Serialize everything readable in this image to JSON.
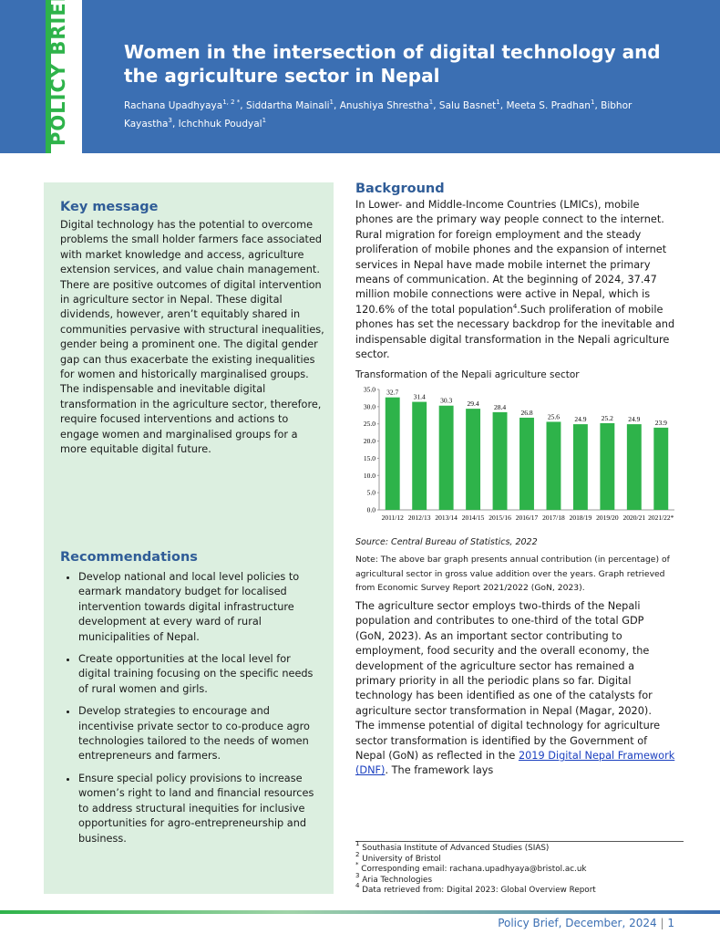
{
  "header": {
    "label": "POLICY BRIEF",
    "title": "Women in the intersection of digital technology and the agriculture sector in Nepal",
    "authors": [
      {
        "name": "Rachana Upadhyaya",
        "affil": "1, 2 *"
      },
      {
        "name": "Siddartha Mainali",
        "affil": "1"
      },
      {
        "name": "Anushiya Shrestha",
        "affil": "1"
      },
      {
        "name": "Salu Basnet",
        "affil": "1"
      },
      {
        "name": "Meeta S. Pradhan",
        "affil": "1"
      },
      {
        "name": "Bibhor Kayastha",
        "affil": "3"
      },
      {
        "name": "Ichchhuk Poudyal",
        "affil": "1"
      }
    ]
  },
  "key_message": {
    "heading": "Key message",
    "text": "Digital technology has the potential to overcome problems the small holder farmers face associated with market knowledge and access, agriculture extension services, and value chain management. There are positive outcomes of digital intervention in agriculture sector in Nepal. These digital dividends, however, aren’t equitably shared in communities pervasive with structural inequalities, gender being a prominent one. The digital gender gap can thus exacerbate the existing inequalities for women and historically marginalised groups. The indispensable and inevitable digital transformation in the agriculture sector, therefore, require focused interventions and actions to engage women and marginalised groups for a more equitable digital future."
  },
  "recommendations": {
    "heading": "Recommendations",
    "items": [
      "Develop national and local level policies to earmark mandatory budget for localised intervention towards digital infrastructure development at every ward of rural municipalities of Nepal.",
      "Create opportunities at the local level for digital training focusing on the specific needs of rural women and girls.",
      "Develop strategies to encourage and incentivise private sector to co-produce agro technologies tailored to the needs of women entrepreneurs and farmers.",
      "Ensure special policy provisions to increase women’s right to land and financial resources to address structural inequities for inclusive opportunities for agro-entrepreneurship and business."
    ]
  },
  "background": {
    "heading": "Background",
    "p1_before": "In Lower- and Middle-Income Countries (LMICs), mobile phones are the primary way people connect to the internet. Rural migration for foreign employment and the steady proliferation of mobile phones and the expansion of internet services in Nepal have made mobile internet the primary means of communication. At the beginning of 2024, 37.47 million mobile connections were active in Nepal, which is 120.6% of the total population",
    "p1_sup": "4",
    "p1_after": ".Such proliferation of mobile phones has set the necessary backdrop for the inevitable and indispensable digital transformation in the Nepali agriculture sector.",
    "source": "Source: Central Bureau of Statistics, 2022",
    "note": "Note: The above bar graph presents annual contribution (in percentage) of agricultural sector in gross value addition over the years. Graph retrieved from Economic Survey Report 2021/2022 (GoN, 2023).",
    "p2": "The agriculture sector employs two-thirds of the Nepali population and contributes to one-third of the total GDP (GoN, 2023). As an important sector contributing to employment, food security and the overall economy, the development of the agriculture sector has remained a primary priority in all the periodic plans so far. Digital technology has been identified as one of the catalysts for agriculture sector transformation in Nepal (Magar, 2020).",
    "p3_before": "The immense potential of digital technology for agriculture sector transformation is identified by the Government of Nepal (GoN) as reflected in the ",
    "p3_link": "2019 Digital Nepal Framework (DNF)",
    "p3_after": ". The framework lays"
  },
  "footnotes": [
    {
      "mark": "1",
      "text": "Southasia Institute of Advanced Studies (SIAS)"
    },
    {
      "mark": "2",
      "text": "University of Bristol"
    },
    {
      "mark": "*",
      "text": "Corresponding email: rachana.upadhyaya@bristol.ac.uk"
    },
    {
      "mark": "3",
      "text": "Aria Technologies"
    },
    {
      "mark": "4",
      "text": "Data retrieved from:  Digital 2023: Global Overview Report"
    }
  ],
  "footer": {
    "text": "Policy Brief, December, 2024",
    "page": "1"
  },
  "chart_data": {
    "type": "bar",
    "title": "Transformation of the Nepali agriculture sector",
    "categories": [
      "2011/12",
      "2012/13",
      "2013/14",
      "2014/15",
      "2015/16",
      "2016/17",
      "2017/18",
      "2018/19",
      "2019/20",
      "2020/21",
      "2021/22*"
    ],
    "values": [
      32.7,
      31.4,
      30.3,
      29.4,
      28.4,
      26.8,
      25.6,
      24.9,
      25.2,
      24.9,
      23.9
    ],
    "color": "#2eb34a",
    "ylim": [
      0,
      35
    ],
    "yticks": [
      {
        "value": 0,
        "label": "0.0"
      },
      {
        "value": 5,
        "label": "5.0"
      },
      {
        "value": 10,
        "label": "10.0"
      },
      {
        "value": 15,
        "label": "15.0"
      },
      {
        "value": 20,
        "label": "20.0"
      },
      {
        "value": 25,
        "label": "25.0"
      },
      {
        "value": 30,
        "label": "30.0"
      },
      {
        "value": 35,
        "label": "35.0"
      }
    ],
    "grid": false
  }
}
